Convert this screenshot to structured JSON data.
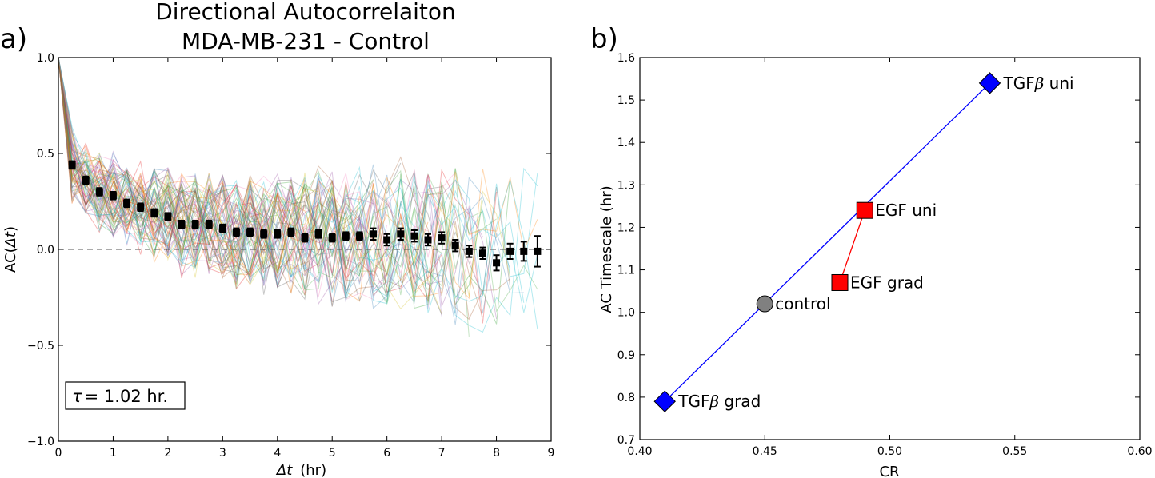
{
  "panel_labels": [
    "a)",
    "b)"
  ],
  "chart_data": [
    {
      "type": "line",
      "title": "Directional Autocorrelaiton",
      "subtitle": "MDA-MB-231 - Control",
      "xlabel_symbol": "Δt",
      "xlabel_unit": "(hr)",
      "ylabel_prefix": "AC(",
      "ylabel_symbol": "Δt",
      "ylabel_suffix": ")",
      "xlim": [
        0,
        9
      ],
      "ylim": [
        -1.0,
        1.0
      ],
      "x_ticks": [
        "0",
        "1",
        "2",
        "3",
        "4",
        "5",
        "6",
        "7",
        "8",
        "9"
      ],
      "y_ticks": [
        "−1.0",
        "−0.5",
        "0.0",
        "0.5",
        "1.0"
      ],
      "grid": false,
      "reference_line_y": 0.0,
      "annotation_symbol": "τ",
      "annotation_text": "= 1.02 hr.",
      "background_tracks": "many faint multicolor individual-cell autocorrelation traces",
      "series": [
        {
          "x": [
            0.25,
            0.5,
            0.75,
            1.0,
            1.25,
            1.5,
            1.75,
            2.0,
            2.25,
            2.5,
            2.75,
            3.0,
            3.25,
            3.5,
            3.75,
            4.0,
            4.25,
            4.5,
            4.75,
            5.0,
            5.25,
            5.5,
            5.75,
            6.0,
            6.25,
            6.5,
            6.75,
            7.0,
            7.25,
            7.5,
            7.75,
            8.0,
            8.25,
            8.5,
            8.75
          ],
          "y": [
            0.44,
            0.36,
            0.3,
            0.28,
            0.24,
            0.22,
            0.19,
            0.17,
            0.13,
            0.13,
            0.13,
            0.11,
            0.09,
            0.09,
            0.08,
            0.08,
            0.09,
            0.06,
            0.08,
            0.06,
            0.07,
            0.07,
            0.08,
            0.05,
            0.08,
            0.07,
            0.05,
            0.06,
            0.02,
            -0.01,
            -0.02,
            -0.07,
            -0.01,
            -0.01,
            -0.01
          ],
          "yerr": [
            0.02,
            0.02,
            0.02,
            0.02,
            0.02,
            0.02,
            0.02,
            0.02,
            0.02,
            0.02,
            0.02,
            0.02,
            0.02,
            0.02,
            0.02,
            0.02,
            0.02,
            0.02,
            0.02,
            0.02,
            0.02,
            0.02,
            0.03,
            0.03,
            0.03,
            0.03,
            0.03,
            0.03,
            0.03,
            0.03,
            0.03,
            0.04,
            0.04,
            0.05,
            0.08
          ],
          "color": "#000000",
          "marker": "square"
        }
      ]
    },
    {
      "type": "scatter",
      "xlabel": "CR",
      "ylabel": "AC Timescale (hr)",
      "xlim": [
        0.4,
        0.6
      ],
      "ylim": [
        0.7,
        1.6
      ],
      "x_ticks": [
        "0.40",
        "0.45",
        "0.50",
        "0.55",
        "0.60"
      ],
      "y_ticks": [
        "0.7",
        "0.8",
        "0.9",
        "1.0",
        "1.1",
        "1.2",
        "1.3",
        "1.4",
        "1.5",
        "1.6"
      ],
      "grid": false,
      "points": [
        {
          "label_text": "TGF",
          "label_symbol": "β",
          "label_suffix": " uni",
          "x": 0.54,
          "y": 1.54,
          "marker": "diamond",
          "color": "#0000ff"
        },
        {
          "label_text": "TGF",
          "label_symbol": "β",
          "label_suffix": " grad",
          "x": 0.41,
          "y": 0.79,
          "marker": "diamond",
          "color": "#0000ff"
        },
        {
          "label_text": "EGF uni",
          "label_symbol": "",
          "label_suffix": "",
          "x": 0.49,
          "y": 1.24,
          "marker": "square",
          "color": "#ff0000"
        },
        {
          "label_text": "EGF grad",
          "label_symbol": "",
          "label_suffix": "",
          "x": 0.48,
          "y": 1.07,
          "marker": "square",
          "color": "#ff0000"
        },
        {
          "label_text": "control",
          "label_symbol": "",
          "label_suffix": "",
          "x": 0.45,
          "y": 1.02,
          "marker": "circle",
          "color": "#808080"
        }
      ],
      "connecting_lines": [
        {
          "from": 1,
          "to": 0,
          "color": "#0000ff"
        },
        {
          "from": 3,
          "to": 2,
          "color": "#ff0000"
        }
      ]
    }
  ]
}
